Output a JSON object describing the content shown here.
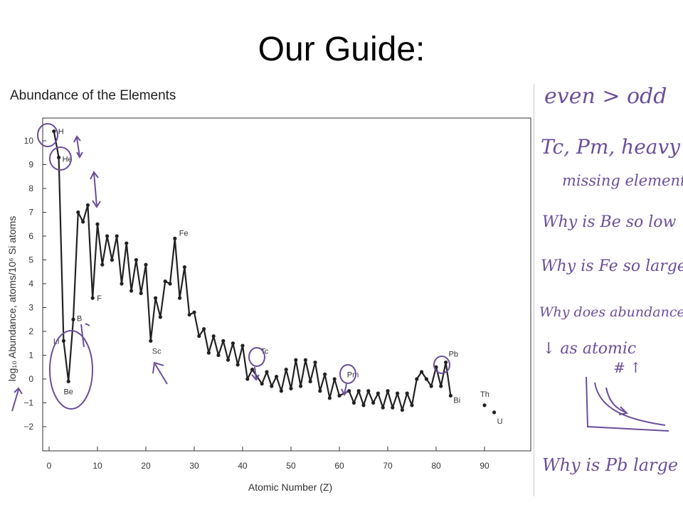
{
  "slide": {
    "title": "Our Guide:"
  },
  "chart_data": {
    "type": "line",
    "title": "Abundance of the Elements",
    "xlabel": "Atomic Number (Z)",
    "ylabel": "log₁₀ Abundance, atoms/10⁶ Si atoms",
    "xlim": [
      0,
      100
    ],
    "ylim": [
      -2,
      11
    ],
    "xticks": [
      0,
      10,
      20,
      30,
      40,
      50,
      60,
      70,
      80,
      90
    ],
    "yticks": [
      -2,
      -1,
      0,
      1,
      2,
      3,
      4,
      5,
      6,
      7,
      8,
      9,
      10
    ],
    "grid": false,
    "series": [
      {
        "x": [
          1,
          2,
          3,
          4,
          5,
          6,
          7,
          8,
          9,
          10,
          11,
          12,
          13,
          14,
          15,
          16,
          17,
          18,
          19,
          20,
          21,
          22,
          23,
          24,
          25,
          26,
          27,
          28,
          29,
          30,
          31,
          32,
          33,
          34,
          35,
          36,
          37,
          38,
          39,
          40,
          41,
          42,
          44,
          45,
          46,
          47,
          48,
          49,
          50,
          51,
          52,
          53,
          54,
          55,
          56,
          57,
          58,
          59,
          60,
          62,
          63,
          64,
          65,
          66,
          67,
          68,
          69,
          70,
          71,
          72,
          73,
          74,
          75,
          76,
          77,
          78,
          79,
          80,
          81,
          82,
          83
        ],
        "y": [
          10.4,
          9.3,
          1.6,
          -0.1,
          2.5,
          7.0,
          6.6,
          7.3,
          3.4,
          6.5,
          4.8,
          6.0,
          5.0,
          6.0,
          4.0,
          5.7,
          3.7,
          5.0,
          3.6,
          4.8,
          1.6,
          3.4,
          2.6,
          4.1,
          4.0,
          5.9,
          3.4,
          4.7,
          2.7,
          2.8,
          1.8,
          2.1,
          1.1,
          1.8,
          1.0,
          1.6,
          0.8,
          1.5,
          0.6,
          1.4,
          0.0,
          0.4,
          -0.2,
          0.3,
          -0.3,
          0.1,
          -0.5,
          0.4,
          -0.4,
          0.8,
          -0.3,
          0.8,
          -0.1,
          0.7,
          -0.5,
          0.2,
          -0.8,
          0.0,
          -0.7,
          -0.5,
          -1.0,
          -0.5,
          -1.1,
          -0.5,
          -1.0,
          -0.6,
          -1.2,
          -0.5,
          -1.2,
          -0.6,
          -1.3,
          -0.6,
          -1.1,
          0.0,
          0.3,
          0.0,
          -0.3,
          0.5,
          -0.3,
          0.7,
          -0.7
        ]
      },
      {
        "x": [
          90,
          92
        ],
        "y": [
          -1.1,
          -1.4
        ]
      }
    ],
    "element_labels": [
      {
        "text": "H",
        "x": 1,
        "y": 10.4
      },
      {
        "text": "He",
        "x": 2,
        "y": 9.3
      },
      {
        "text": "Li",
        "x": 3,
        "y": 1.6
      },
      {
        "text": "Be",
        "x": 4,
        "y": -0.1
      },
      {
        "text": "B",
        "x": 5,
        "y": 2.5
      },
      {
        "text": "F",
        "x": 9,
        "y": 3.4
      },
      {
        "text": "Sc",
        "x": 21,
        "y": 1.6
      },
      {
        "text": "Fe",
        "x": 26,
        "y": 5.9
      },
      {
        "text": "Tc",
        "x": 43,
        "y": 1.0
      },
      {
        "text": "Pm",
        "x": 61,
        "y": 0.2
      },
      {
        "text": "Pb",
        "x": 82,
        "y": 0.7
      },
      {
        "text": "Bi",
        "x": 83,
        "y": -0.7
      },
      {
        "text": "Th",
        "x": 90,
        "y": -1.1
      },
      {
        "text": "U",
        "x": 92,
        "y": -1.4
      }
    ]
  },
  "annotations": {
    "notes": [
      "even > odd",
      "Tc, Pm, heavy",
      "missing elements",
      "Why is Be so low",
      "Why is Fe so large",
      "Why does abundance",
      "↓ as atomic",
      "# ↑",
      "Why is Pb large"
    ],
    "ink_color": "#6b4f9a"
  }
}
